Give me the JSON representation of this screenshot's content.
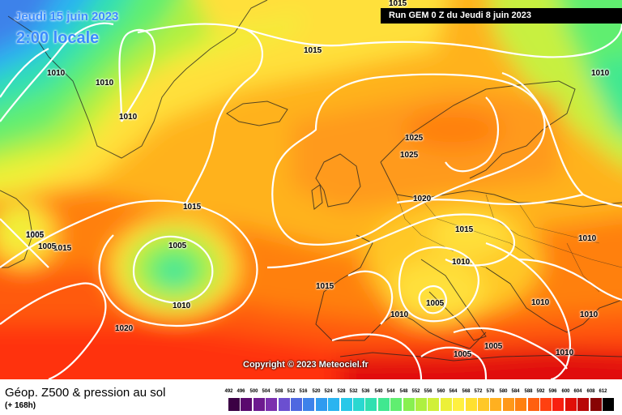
{
  "header": {
    "date": "Jeudi 15 juin 2023",
    "local_time": "2:00 locale",
    "run_info": "Run GEM 0 Z du Jeudi 8 juin 2023"
  },
  "isobar_labels": [
    "1015",
    "1010",
    "1010",
    "1010",
    "1015",
    "1025",
    "1025",
    "1020",
    "1015",
    "1010",
    "1010",
    "1005",
    "1015",
    "1005",
    "1015",
    "1005",
    "1010",
    "1015",
    "1010",
    "1005",
    "1010",
    "1020",
    "1005",
    "1005",
    "1010",
    "1010",
    "1005",
    "1010"
  ],
  "copyright": "Copyright © 2023 Meteociel.fr",
  "footer": {
    "title": "Géop. Z500 & pression au sol",
    "subtitle": "(+ 168h)"
  },
  "scale": {
    "ticks": [
      "492",
      "496",
      "500",
      "504",
      "508",
      "512",
      "516",
      "520",
      "524",
      "528",
      "532",
      "536",
      "540",
      "544",
      "548",
      "552",
      "556",
      "560",
      "564",
      "568",
      "572",
      "576",
      "580",
      "584",
      "588",
      "592",
      "596",
      "600",
      "604",
      "608",
      "612"
    ],
    "colors": [
      "#3b0044",
      "#5a0a6e",
      "#6d1a8f",
      "#7b2fae",
      "#6b4fd0",
      "#4f68e0",
      "#3d82ea",
      "#2f9bf0",
      "#2ab4f0",
      "#28c8e8",
      "#2ad8d0",
      "#30e0b0",
      "#40e890",
      "#60ee70",
      "#88f050",
      "#aef040",
      "#d0f038",
      "#ecf038",
      "#fff040",
      "#ffe030",
      "#ffc828",
      "#ffb020",
      "#ff9818",
      "#ff8010",
      "#ff6010",
      "#ff4010",
      "#f82010",
      "#e01008",
      "#b80808",
      "#880404",
      "#000000"
    ]
  }
}
